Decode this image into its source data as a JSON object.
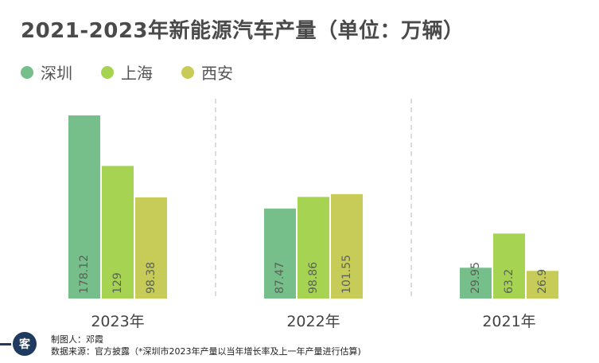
{
  "chart_data": {
    "type": "bar",
    "title": "2021-2023年新能源汽车产量（单位：万辆）",
    "categories": [
      "2023年",
      "2022年",
      "2021年"
    ],
    "series": [
      {
        "name": "深圳",
        "color": "#76bf8b",
        "values": [
          178.12,
          87.47,
          29.95
        ],
        "labels": [
          "178.12",
          "87.47",
          "29.95"
        ]
      },
      {
        "name": "上海",
        "color": "#a7d352",
        "values": [
          129,
          98.86,
          63.2
        ],
        "labels": [
          "129",
          "98.86",
          "63.2"
        ]
      },
      {
        "name": "西安",
        "color": "#c6cc57",
        "values": [
          98.38,
          101.55,
          26.9
        ],
        "labels": [
          "98.38",
          "101.55",
          "26.9"
        ]
      }
    ],
    "ylim": [
      0,
      178.12
    ],
    "xlabel": "",
    "ylabel": "",
    "grid": false,
    "legend": "top-left"
  },
  "footer": {
    "author": "制图人：邓霞",
    "source": "数据来源：官方披露（*深圳市2023年产量以当年增长率及上一年产量进行估算)"
  },
  "logo": {
    "char": "客"
  }
}
